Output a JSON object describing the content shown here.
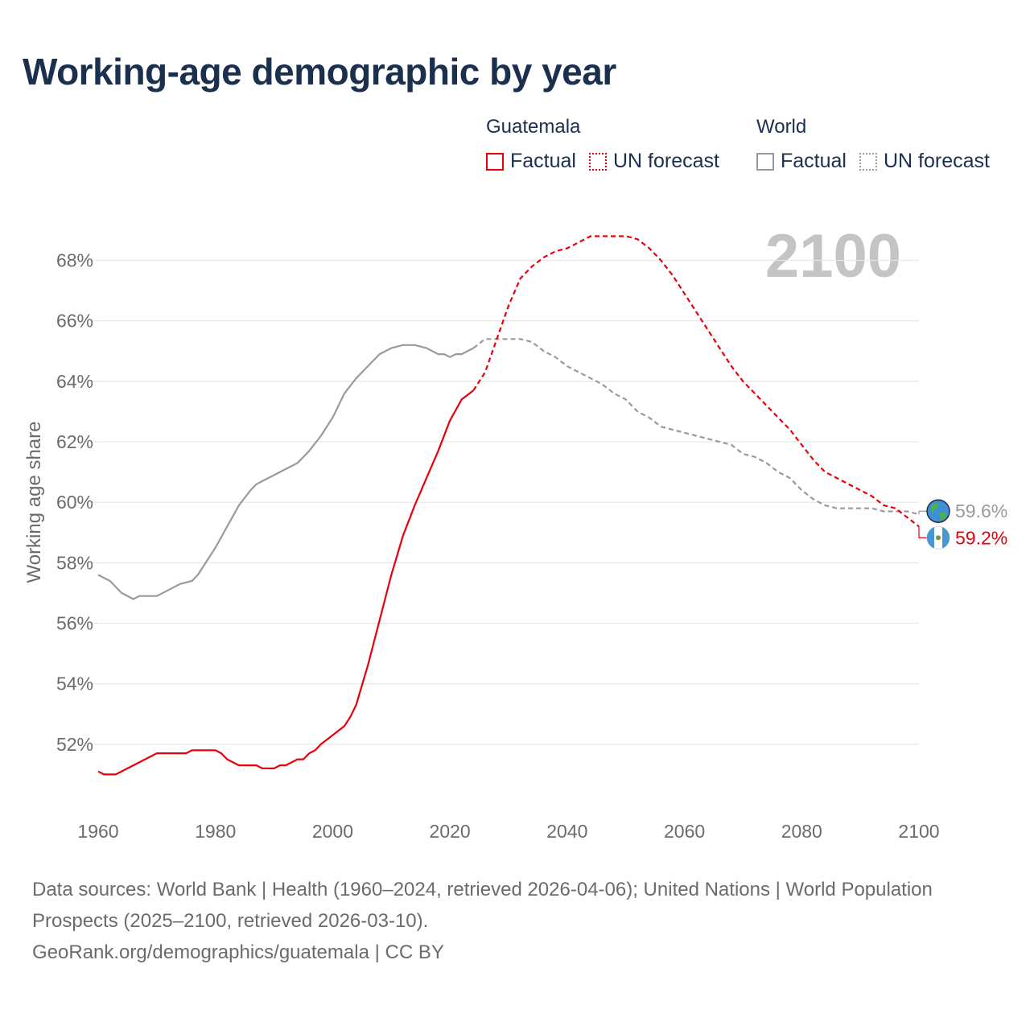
{
  "title": "Working-age demographic by year",
  "legend": {
    "guatemala": {
      "heading": "Guatemala",
      "factual": "Factual",
      "forecast": "UN forecast"
    },
    "world": {
      "heading": "World",
      "factual": "Factual",
      "forecast": "UN forecast"
    }
  },
  "colors": {
    "guatemala": "#e8000b",
    "world": "#9a9a9a",
    "title": "#1b2f4e"
  },
  "year_label": "2100",
  "footer": {
    "sources": "Data sources: World Bank | Health (1960–2024, retrieved 2026-04-06); United Nations | World Population Prospects (2025–2100, retrieved 2026-03-10).",
    "credit": "GeoRank.org/demographics/guatemala | CC BY"
  },
  "chart_data": {
    "type": "line",
    "ylabel": "Working age share",
    "xlabel": "",
    "xlim": [
      1960,
      2100
    ],
    "ylim": [
      50,
      69
    ],
    "x_ticks": [
      1960,
      1980,
      2000,
      2020,
      2040,
      2060,
      2080,
      2100
    ],
    "y_ticks": [
      52,
      54,
      56,
      58,
      60,
      62,
      64,
      66,
      68
    ],
    "y_tick_labels": [
      "52%",
      "54%",
      "56%",
      "58%",
      "60%",
      "62%",
      "64%",
      "66%",
      "68%"
    ],
    "series": [
      {
        "name": "Guatemala",
        "factual": {
          "x": [
            1960,
            1961,
            1962,
            1963,
            1965,
            1968,
            1970,
            1972,
            1974,
            1975,
            1976,
            1978,
            1980,
            1981,
            1982,
            1984,
            1986,
            1987,
            1988,
            1990,
            1991,
            1992,
            1994,
            1995,
            1996,
            1997,
            1998,
            2000,
            2002,
            2003,
            2004,
            2006,
            2008,
            2010,
            2012,
            2014,
            2016,
            2018,
            2020,
            2022,
            2024
          ],
          "y": [
            51.1,
            51.0,
            51.0,
            51.0,
            51.2,
            51.5,
            51.7,
            51.7,
            51.7,
            51.7,
            51.8,
            51.8,
            51.8,
            51.7,
            51.5,
            51.3,
            51.3,
            51.3,
            51.2,
            51.2,
            51.3,
            51.3,
            51.5,
            51.5,
            51.7,
            51.8,
            52.0,
            52.3,
            52.6,
            52.9,
            53.3,
            54.6,
            56.1,
            57.6,
            58.9,
            59.9,
            60.8,
            61.7,
            62.7,
            63.4,
            63.7
          ]
        },
        "forecast": {
          "x": [
            2024,
            2026,
            2028,
            2030,
            2032,
            2034,
            2036,
            2038,
            2040,
            2042,
            2044,
            2046,
            2048,
            2050,
            2052,
            2054,
            2056,
            2058,
            2060,
            2062,
            2064,
            2066,
            2068,
            2070,
            2072,
            2074,
            2076,
            2078,
            2080,
            2082,
            2084,
            2086,
            2088,
            2090,
            2092,
            2094,
            2096,
            2098,
            2100
          ],
          "y": [
            63.7,
            64.3,
            65.4,
            66.5,
            67.4,
            67.8,
            68.1,
            68.3,
            68.4,
            68.6,
            68.8,
            68.8,
            68.8,
            68.8,
            68.7,
            68.4,
            68.0,
            67.5,
            66.9,
            66.3,
            65.7,
            65.1,
            64.5,
            64.0,
            63.6,
            63.2,
            62.8,
            62.4,
            61.9,
            61.4,
            61.0,
            60.8,
            60.6,
            60.4,
            60.2,
            59.9,
            59.8,
            59.5,
            59.2
          ]
        },
        "end_label": "59.2%",
        "end_icon": "guatemala-flag-icon"
      },
      {
        "name": "World",
        "factual": {
          "x": [
            1960,
            1962,
            1964,
            1966,
            1967,
            1968,
            1970,
            1972,
            1973,
            1974,
            1976,
            1977,
            1978,
            1980,
            1982,
            1984,
            1986,
            1987,
            1988,
            1990,
            1992,
            1994,
            1996,
            1998,
            2000,
            2002,
            2004,
            2006,
            2008,
            2010,
            2012,
            2014,
            2016,
            2018,
            2019,
            2020,
            2021,
            2022,
            2024
          ],
          "y": [
            57.6,
            57.4,
            57.0,
            56.8,
            56.9,
            56.9,
            56.9,
            57.1,
            57.2,
            57.3,
            57.4,
            57.6,
            57.9,
            58.5,
            59.2,
            59.9,
            60.4,
            60.6,
            60.7,
            60.9,
            61.1,
            61.3,
            61.7,
            62.2,
            62.8,
            63.6,
            64.1,
            64.5,
            64.9,
            65.1,
            65.2,
            65.2,
            65.1,
            64.9,
            64.9,
            64.8,
            64.9,
            64.9,
            65.1
          ]
        },
        "forecast": {
          "x": [
            2024,
            2026,
            2028,
            2030,
            2032,
            2034,
            2036,
            2038,
            2040,
            2042,
            2044,
            2046,
            2048,
            2050,
            2052,
            2054,
            2056,
            2058,
            2060,
            2062,
            2064,
            2066,
            2068,
            2070,
            2072,
            2074,
            2076,
            2078,
            2080,
            2082,
            2084,
            2086,
            2088,
            2090,
            2092,
            2094,
            2096,
            2098,
            2100
          ],
          "y": [
            65.1,
            65.4,
            65.4,
            65.4,
            65.4,
            65.3,
            65.0,
            64.8,
            64.5,
            64.3,
            64.1,
            63.9,
            63.6,
            63.4,
            63.0,
            62.8,
            62.5,
            62.4,
            62.3,
            62.2,
            62.1,
            62.0,
            61.9,
            61.6,
            61.5,
            61.3,
            61.0,
            60.8,
            60.4,
            60.1,
            59.9,
            59.8,
            59.8,
            59.8,
            59.8,
            59.7,
            59.7,
            59.7,
            59.6
          ]
        },
        "end_label": "59.6%",
        "end_icon": "globe-icon"
      }
    ]
  }
}
